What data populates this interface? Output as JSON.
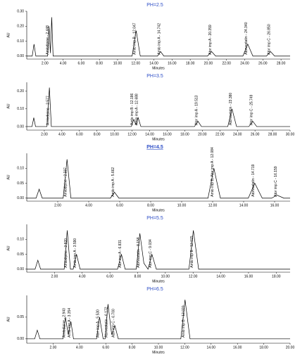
{
  "chart_data": [
    {
      "type": "line",
      "title": "PH=2.5",
      "x_label": "Minutes",
      "y_label": "AU",
      "xlim": [
        0,
        29
      ],
      "ylim": [
        -0.02,
        0.3
      ],
      "xticks": [
        {
          "value": 2,
          "label": "2.00"
        },
        {
          "value": 4,
          "label": "4.00"
        },
        {
          "value": 6,
          "label": "6.00"
        },
        {
          "value": 8,
          "label": "8.00"
        },
        {
          "value": 10,
          "label": "10.00"
        },
        {
          "value": 12,
          "label": "12.00"
        },
        {
          "value": 14,
          "label": "14.00"
        },
        {
          "value": 16,
          "label": "16.00"
        },
        {
          "value": 18,
          "label": "18.00"
        },
        {
          "value": 20,
          "label": "20.00"
        },
        {
          "value": 22,
          "label": "22.00"
        },
        {
          "value": 24,
          "label": "24.00"
        },
        {
          "value": 26,
          "label": "26.00"
        },
        {
          "value": 28,
          "label": "28.00"
        }
      ],
      "yticks": [
        {
          "value": 0,
          "label": "0.00"
        },
        {
          "value": 0.1,
          "label": "0.10"
        },
        {
          "value": 0.2,
          "label": "0.20"
        },
        {
          "value": 0.3,
          "label": "0.30"
        }
      ],
      "x": [
        0,
        0.6,
        0.8,
        1.0,
        2.3,
        2.45,
        2.6,
        2.75,
        2.9,
        11.6,
        12.05,
        12.5,
        14.4,
        14.74,
        15.1,
        19.9,
        20.36,
        20.8,
        23.8,
        24.34,
        24.9,
        26.4,
        26.85,
        27.3,
        29
      ],
      "values": [
        0,
        0,
        0.08,
        0,
        0,
        0.2,
        0.02,
        0.26,
        0,
        0,
        0.17,
        0,
        0,
        0.03,
        0,
        0,
        0.03,
        0,
        0,
        0.08,
        0,
        0,
        0.03,
        0,
        0
      ],
      "annotations": [
        {
          "text": "Amlodipine - 2.448",
          "x": 2.448
        },
        {
          "text": "Amlo imp B - 12.047",
          "x": 12.047
        },
        {
          "text": "Amlo imp A - 14.742",
          "x": 14.742
        },
        {
          "text": "Ator imp A - 20.359",
          "x": 20.359
        },
        {
          "text": "Atorvastatin - 24.340",
          "x": 24.34
        },
        {
          "text": "Ator imp C - 26.850",
          "x": 26.85
        }
      ]
    },
    {
      "type": "line",
      "title": "PH=3.5",
      "x_label": "Minutes",
      "y_label": "AU",
      "xlim": [
        0,
        30
      ],
      "ylim": [
        -0.02,
        0.25
      ],
      "xticks": [
        {
          "value": 2,
          "label": "2.00"
        },
        {
          "value": 4,
          "label": "4.00"
        },
        {
          "value": 6,
          "label": "6.00"
        },
        {
          "value": 8,
          "label": "8.00"
        },
        {
          "value": 10,
          "label": "10.00"
        },
        {
          "value": 12,
          "label": "12.00"
        },
        {
          "value": 14,
          "label": "14.00"
        },
        {
          "value": 16,
          "label": "16.00"
        },
        {
          "value": 18,
          "label": "18.00"
        },
        {
          "value": 20,
          "label": "20.00"
        },
        {
          "value": 22,
          "label": "22.00"
        },
        {
          "value": 24,
          "label": "24.00"
        },
        {
          "value": 26,
          "label": "26.00"
        },
        {
          "value": 28,
          "label": "28.00"
        },
        {
          "value": 30,
          "label": "30.00"
        }
      ],
      "yticks": [
        {
          "value": 0,
          "label": "0.00"
        },
        {
          "value": 0.1,
          "label": "0.10"
        },
        {
          "value": 0.2,
          "label": "0.20"
        }
      ],
      "x": [
        0,
        0.6,
        0.8,
        1.0,
        2.3,
        2.58,
        2.8,
        11.9,
        12.19,
        12.45,
        12.69,
        13.0,
        19.1,
        19.51,
        19.9,
        22.9,
        23.38,
        23.9,
        25.3,
        25.75,
        26.2,
        30
      ],
      "values": [
        0,
        0,
        0.05,
        0,
        0,
        0.22,
        0,
        0,
        0.04,
        0.01,
        0.05,
        0,
        0,
        0.03,
        0,
        0,
        0.1,
        0,
        0,
        0.03,
        0,
        0
      ],
      "annotations": [
        {
          "text": "Amlodipine - 2.577",
          "x": 2.577
        },
        {
          "text": "Amlo imp B - 12.186",
          "x": 12.186
        },
        {
          "text": "Amlo imp A - 12.688",
          "x": 12.688
        },
        {
          "text": "Ator imp A - 19.513",
          "x": 19.513
        },
        {
          "text": "Atorvastatin - 23.380",
          "x": 23.38
        },
        {
          "text": "Ator imp C - 25.749",
          "x": 25.749
        }
      ]
    },
    {
      "type": "line",
      "title": "PH=4.5",
      "x_label": "Minutes",
      "y_label": "AU",
      "xlim": [
        0,
        17
      ],
      "ylim": [
        -0.01,
        0.15
      ],
      "xticks": [
        {
          "value": 2,
          "label": "2.00"
        },
        {
          "value": 4,
          "label": "4.00"
        },
        {
          "value": 6,
          "label": "6.00"
        },
        {
          "value": 8,
          "label": "8.00"
        },
        {
          "value": 10,
          "label": "10.00"
        },
        {
          "value": 12,
          "label": "12.00"
        },
        {
          "value": 14,
          "label": "14.00"
        },
        {
          "value": 16,
          "label": "16.00"
        }
      ],
      "yticks": [
        {
          "value": 0,
          "label": "0.00"
        },
        {
          "value": 0.05,
          "label": "0.05"
        },
        {
          "value": 0.1,
          "label": "0.10"
        }
      ],
      "x": [
        0,
        0.6,
        0.8,
        1.0,
        2.35,
        2.6,
        2.85,
        5.4,
        5.66,
        5.95,
        11.7,
        12.08,
        12.5,
        14.3,
        14.72,
        15.2,
        15.8,
        16.16,
        16.6,
        17
      ],
      "values": [
        0,
        0,
        0.03,
        0,
        0,
        0.13,
        0,
        0,
        0.02,
        0,
        0,
        0.1,
        0,
        0,
        0.05,
        0,
        0,
        0.01,
        0,
        0
      ],
      "annotations": [
        {
          "text": "Amlodipine - 2.597",
          "x": 2.597
        },
        {
          "text": "Amlo imp A - 5.662",
          "x": 5.662
        },
        {
          "text": "Amlo imp B, Ator imp A - 12.084",
          "x": 12.084
        },
        {
          "text": "Atorvastatin - 14.719",
          "x": 14.719
        },
        {
          "text": "Ator imp C - 16.159",
          "x": 16.159
        }
      ]
    },
    {
      "type": "line",
      "title": "PH=5.5",
      "x_label": "Minutes",
      "y_label": "AU",
      "xlim": [
        0,
        19
      ],
      "ylim": [
        -0.01,
        0.15
      ],
      "xticks": [
        {
          "value": 2,
          "label": "2.00"
        },
        {
          "value": 4,
          "label": "4.00"
        },
        {
          "value": 6,
          "label": "6.00"
        },
        {
          "value": 8,
          "label": "8.00"
        },
        {
          "value": 10,
          "label": "10.00"
        },
        {
          "value": 12,
          "label": "12.00"
        },
        {
          "value": 14,
          "label": "14.00"
        },
        {
          "value": 16,
          "label": "16.00"
        },
        {
          "value": 18,
          "label": "18.00"
        }
      ],
      "yticks": [
        {
          "value": 0,
          "label": "0.00"
        },
        {
          "value": 0.05,
          "label": "0.05"
        },
        {
          "value": 0.1,
          "label": "0.10"
        }
      ],
      "x": [
        0,
        0.6,
        0.8,
        1.0,
        2.7,
        2.92,
        3.15,
        3.35,
        3.59,
        3.85,
        6.55,
        6.83,
        7.1,
        7.9,
        8.16,
        8.45,
        8.75,
        9.03,
        9.35,
        11.7,
        12.02,
        12.4,
        19
      ],
      "values": [
        0,
        0,
        0.03,
        0,
        0,
        0.13,
        0,
        0,
        0.05,
        0,
        0,
        0.05,
        0,
        0,
        0.12,
        0.02,
        0,
        0.05,
        0,
        0,
        0.13,
        0,
        0
      ],
      "annotations": [
        {
          "text": "Amlodipine - 2.920",
          "x": 2.92
        },
        {
          "text": "Amlo imp A - 3.590",
          "x": 3.59
        },
        {
          "text": "Ator imp A - 6.831",
          "x": 6.831
        },
        {
          "text": "Atorvastatin - 8.158",
          "x": 8.158
        },
        {
          "text": "Ator imp C - 9.034",
          "x": 9.034
        },
        {
          "text": "Amlo imp B - 12.015",
          "x": 12.015
        }
      ]
    },
    {
      "type": "line",
      "title": "PH=6.5",
      "x_label": "Minutes",
      "y_label": "AU",
      "xlim": [
        0,
        20
      ],
      "ylim": [
        -0.01,
        0.1
      ],
      "xticks": [
        {
          "value": 2,
          "label": "2.00"
        },
        {
          "value": 4,
          "label": "4.00"
        },
        {
          "value": 6,
          "label": "6.00"
        },
        {
          "value": 8,
          "label": "8.00"
        },
        {
          "value": 10,
          "label": "10.00"
        },
        {
          "value": 12,
          "label": "12.00"
        },
        {
          "value": 14,
          "label": "14.00"
        },
        {
          "value": 16,
          "label": "16.00"
        },
        {
          "value": 18,
          "label": "18.00"
        },
        {
          "value": 20,
          "label": "20.00"
        }
      ],
      "yticks": [
        {
          "value": 0,
          "label": "0.00"
        },
        {
          "value": 0.05,
          "label": "0.05"
        }
      ],
      "x": [
        0,
        0.6,
        0.8,
        1.0,
        2.75,
        2.94,
        3.15,
        3.35,
        3.55,
        5.3,
        5.53,
        5.8,
        5.95,
        6.17,
        6.45,
        6.7,
        6.95,
        11.7,
        12.02,
        12.4,
        20
      ],
      "values": [
        0,
        0,
        0.02,
        0,
        0,
        0.05,
        0.01,
        0.04,
        0,
        0,
        0.05,
        0,
        0,
        0.08,
        0.01,
        0.03,
        0,
        0,
        0.09,
        0,
        0
      ],
      "annotations": [
        {
          "text": "Amlodipine - 2.940",
          "x": 2.94
        },
        {
          "text": "Amlo imp A - 3.354",
          "x": 3.354
        },
        {
          "text": "Ator imp A - 5.530",
          "x": 5.53
        },
        {
          "text": "Atorvastatin - 6.172",
          "x": 6.172
        },
        {
          "text": "Ator imp C - 6.700",
          "x": 6.7
        },
        {
          "text": "Amlo imp B - 12.020",
          "x": 12.02
        }
      ]
    }
  ]
}
